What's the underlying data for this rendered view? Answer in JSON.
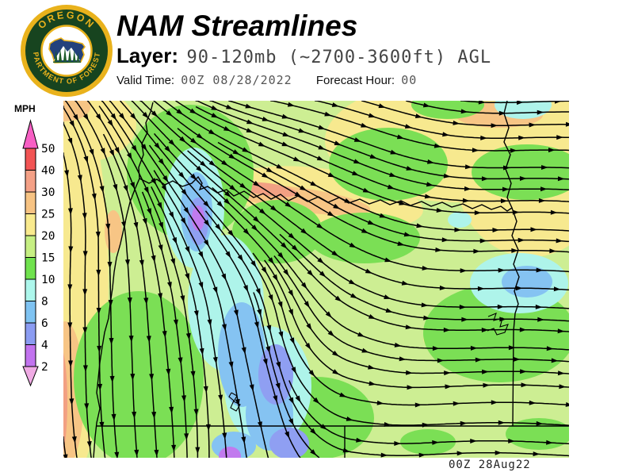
{
  "header": {
    "title": "NAM Streamlines",
    "layer_label": "Layer:",
    "layer_value": "90-120mb (~2700-3600ft) AGL",
    "valid_time_label": "Valid Time:",
    "valid_time_value": "00Z 08/28/2022",
    "forecast_hour_label": "Forecast Hour:",
    "forecast_hour_value": "00"
  },
  "logo": {
    "arc_top": "OREGON",
    "arc_bottom": "DEPARTMENT OF FORESTRY",
    "colors": {
      "gold": "#e9b21c",
      "ring_green": "#17441f",
      "navy": "#23417c",
      "tree_green": "#1d5b28",
      "field": "#ffffff"
    }
  },
  "legend": {
    "title": "MPH",
    "ticks": [
      "50",
      "40",
      "30",
      "25",
      "20",
      "15",
      "10",
      "8",
      "6",
      "4",
      "2"
    ],
    "segment_colors": [
      "#f25454",
      "#f4a086",
      "#f7c383",
      "#f9ea8e",
      "#c6ef83",
      "#70e24e",
      "#adf7ec",
      "#7fc3f2",
      "#8b9cf2",
      "#c273ef"
    ],
    "arrow_top": "#f75fc4",
    "arrow_bottom": "#efabe4"
  },
  "map": {
    "timestamp": "00Z 28Aug22",
    "palette": {
      "base_15_20": "#cdee93",
      "green_10_15": "#7bdf55",
      "yellow_20_25": "#f7e98f",
      "peach_25_30": "#f7c585",
      "salmon_30_40": "#f2a083",
      "cyan_8_10": "#aef4ea",
      "lblue_6_8": "#85c3f2",
      "peri_4_6": "#8f9ff2",
      "purple_2_4": "#c17aee",
      "line": "#000000"
    }
  }
}
